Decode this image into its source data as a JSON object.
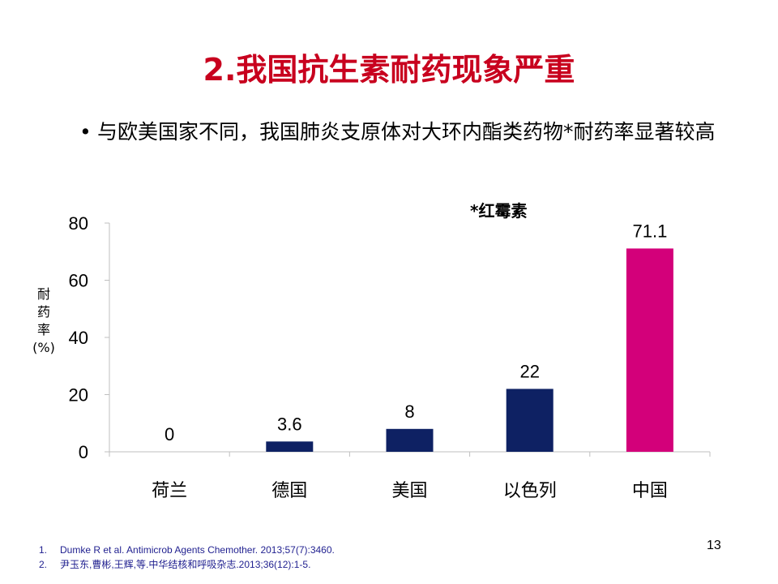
{
  "slide": {
    "title": "2.我国抗生素耐药现象严重",
    "bullet_marker": "•",
    "bullet_text": "与欧美国家不同，我国肺炎支原体对大环内酯类药物*耐药率显著较高",
    "note": "*红霉素",
    "y_axis_label": "耐\n药\n率\n(%)",
    "page_number": "13"
  },
  "references": [
    {
      "num": "1.",
      "text": "Dumke R et al. Antimicrob Agents Chemother. 2013;57(7):3460."
    },
    {
      "num": "2.",
      "text": "尹玉东,曹彬,王辉,等.中华结核和呼吸杂志.2013;36(12):1-5."
    }
  ],
  "colors": {
    "title": "#c8001e",
    "bar_default": "#0e2163",
    "bar_highlight": "#d3007a",
    "axis": "#bfbfbf"
  },
  "chart_data": {
    "type": "bar",
    "title": "",
    "xlabel": "",
    "ylabel": "耐药率(%)",
    "categories": [
      "荷兰",
      "德国",
      "美国",
      "以色列",
      "中国"
    ],
    "values": [
      0,
      3.6,
      8,
      22,
      71.1
    ],
    "value_labels": [
      "0",
      "3.6",
      "8",
      "22",
      "71.1"
    ],
    "highlight_index": 4,
    "ylim": [
      0,
      80
    ],
    "yticks": [
      0,
      20,
      40,
      60,
      80
    ],
    "grid": false,
    "legend": "none"
  }
}
